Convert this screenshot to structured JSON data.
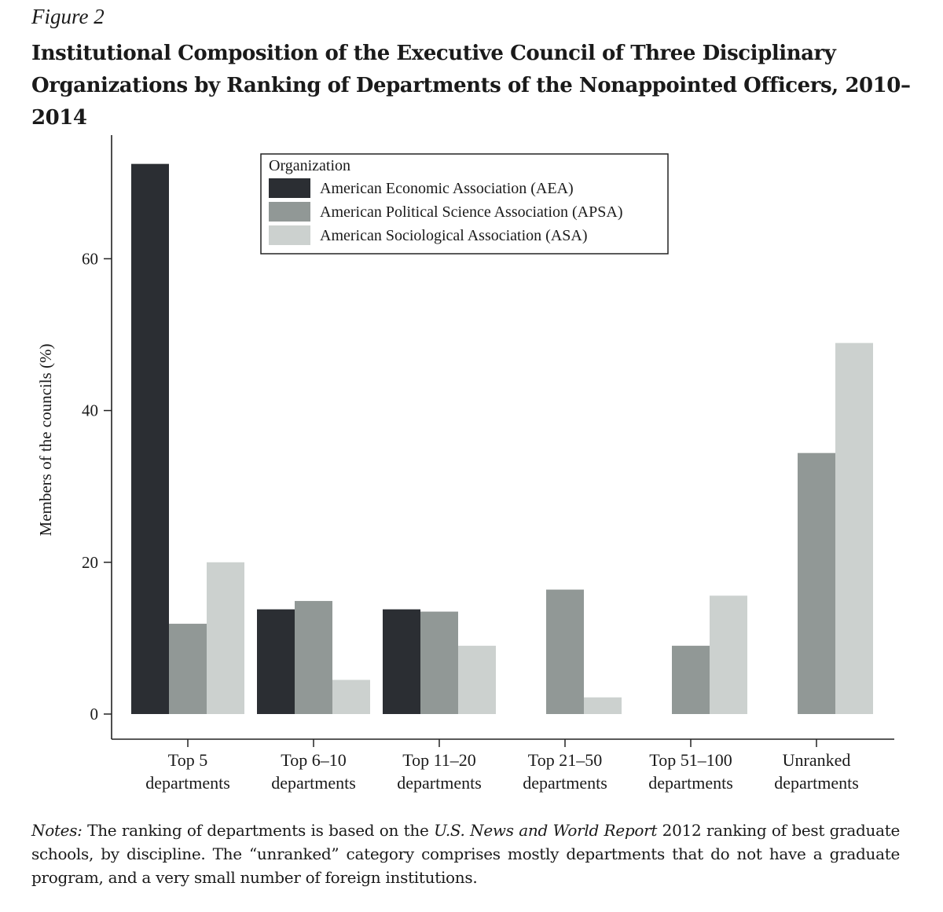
{
  "figure_label": "Figure 2",
  "title": "Institutional Composition of the Executive Council of Three Disciplinary Organizations by Ranking of Departments of the Nonappointed Officers, 2010–2014",
  "notes": {
    "lead": "Notes:",
    "part1": " The ranking of departments is based on the ",
    "source": "U.S. News and World Report",
    "part2": " 2012 ranking of best graduate schools, by discipline. The “unranked” category comprises mostly departments that do not have a graduate program, and a very small number of foreign institutions."
  },
  "chart_data": {
    "type": "bar",
    "ylabel": "Members of the councils (%)",
    "xlabel": "",
    "ylim": [
      0,
      73
    ],
    "yticks": [
      0,
      20,
      40,
      60
    ],
    "grid": false,
    "legend_title": "Organization",
    "legend_position": "top-center",
    "categories": [
      [
        "Top 5",
        "departments"
      ],
      [
        "Top 6–10",
        "departments"
      ],
      [
        "Top 11–20",
        "departments"
      ],
      [
        "Top 21–50",
        "departments"
      ],
      [
        "Top 51–100",
        "departments"
      ],
      [
        "Unranked",
        "departments"
      ]
    ],
    "series": [
      {
        "name": "American Economic Association (AEA)",
        "color": "#2b2e33",
        "values": [
          72.5,
          13.8,
          13.8,
          0,
          0,
          0
        ]
      },
      {
        "name": "American Political Science Association (APSA)",
        "color": "#919896",
        "values": [
          11.9,
          14.9,
          13.5,
          16.4,
          9.0,
          34.4
        ]
      },
      {
        "name": "American Sociological Association (ASA)",
        "color": "#ccd1cf",
        "values": [
          20.0,
          4.5,
          9.0,
          2.2,
          15.6,
          48.9
        ]
      }
    ]
  }
}
